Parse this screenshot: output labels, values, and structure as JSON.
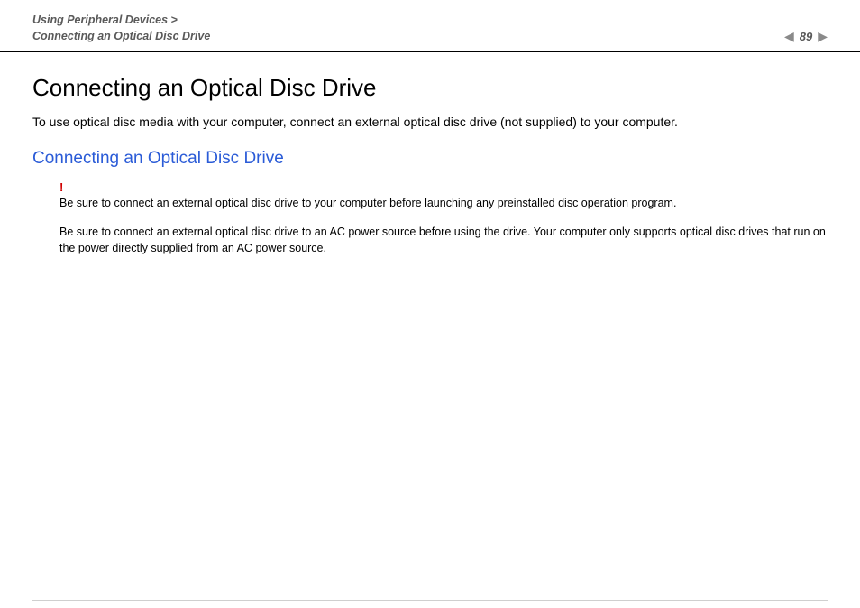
{
  "header": {
    "breadcrumb_line1": "Using Peripheral Devices >",
    "breadcrumb_line2": "Connecting an Optical Disc Drive",
    "page_number": "89",
    "prev_arrow": "◀",
    "next_arrow": "▶"
  },
  "content": {
    "page_title": "Connecting an Optical Disc Drive",
    "intro": "To use optical disc media with your computer, connect an external optical disc drive (not supplied) to your computer.",
    "section_title": "Connecting an Optical Disc Drive",
    "alert_mark": "!",
    "note1": "Be sure to connect an external optical disc drive to your computer before launching any preinstalled disc operation program.",
    "note2": "Be sure to connect an external optical disc drive to an AC power source before using the drive. Your computer only supports optical disc drives that run on the power directly supplied from an AC power source."
  },
  "colors": {
    "breadcrumb_text": "#5a5a5a",
    "section_link": "#2a5bd7",
    "alert": "#d00000",
    "divider": "#000000",
    "footer_divider": "#cfcfcf",
    "arrow": "#8a8a8a"
  },
  "typography": {
    "page_title_size_pt": 26,
    "section_title_size_pt": 19,
    "body_size_pt": 14,
    "note_size_pt": 12.5,
    "breadcrumb_size_pt": 12.5
  }
}
